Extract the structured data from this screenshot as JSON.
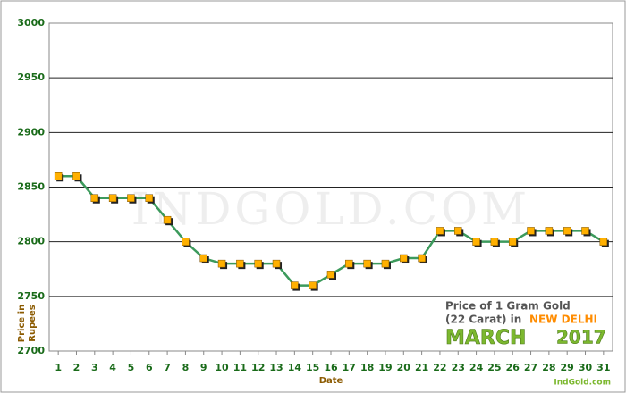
{
  "chart_data": {
    "type": "line",
    "x": [
      1,
      2,
      3,
      4,
      5,
      6,
      7,
      8,
      9,
      10,
      11,
      12,
      13,
      14,
      15,
      16,
      17,
      18,
      19,
      20,
      21,
      22,
      23,
      24,
      25,
      26,
      27,
      28,
      29,
      30,
      31
    ],
    "series": [
      {
        "name": "Price of 1 Gram Gold",
        "color": "#3c9a5c",
        "marker_color": "#ffb000",
        "values": [
          2860,
          2860,
          2840,
          2840,
          2840,
          2840,
          2820,
          2800,
          2785,
          2780,
          2780,
          2780,
          2780,
          2760,
          2760,
          2770,
          2780,
          2780,
          2780,
          2785,
          2785,
          2810,
          2810,
          2800,
          2800,
          2800,
          2810,
          2810,
          2810,
          2810,
          2800
        ]
      }
    ],
    "xlim": [
      0.5,
      31.5
    ],
    "xticks": [
      1,
      2,
      3,
      4,
      5,
      6,
      7,
      8,
      9,
      10,
      11,
      12,
      13,
      14,
      15,
      16,
      17,
      18,
      19,
      20,
      21,
      22,
      23,
      24,
      25,
      26,
      27,
      28,
      29,
      30,
      31
    ],
    "ylim": [
      2700,
      3000
    ],
    "yticks": [
      2700,
      2750,
      2800,
      2850,
      2900,
      2950,
      3000
    ],
    "grid": true,
    "xlabel": "Date",
    "ylabel_lines": [
      "Price in",
      "Rupees"
    ],
    "watermark": "IndGold.com",
    "annotation": {
      "line1": "Price of 1 Gram Gold",
      "line2": "(22 Carat) in",
      "city": "NEW DELHI",
      "month": "MARCH",
      "year": "2017"
    },
    "footer": "IndGold.com"
  }
}
